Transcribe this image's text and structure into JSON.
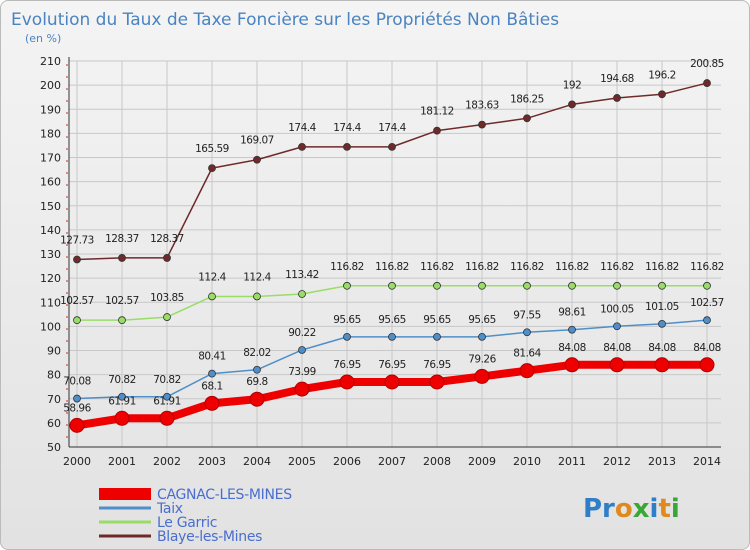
{
  "chart_data": {
    "type": "line",
    "title": "Evolution du Taux de Taxe Foncière sur les Propriétés Non Bâties",
    "unit_label": "(en %)",
    "xlabel": "",
    "ylabel": "",
    "ylim": [
      50,
      210
    ],
    "y_ticks": [
      50,
      60,
      70,
      80,
      90,
      100,
      110,
      120,
      130,
      140,
      150,
      160,
      170,
      180,
      190,
      200,
      210
    ],
    "categories": [
      "2000",
      "2001",
      "2002",
      "2003",
      "2004",
      "2005",
      "2006",
      "2007",
      "2008",
      "2009",
      "2010",
      "2011",
      "2012",
      "2013",
      "2014"
    ],
    "series": [
      {
        "name": "CAGNAC-LES-MINES",
        "color": "#ee0000",
        "values": [
          58.96,
          61.91,
          61.91,
          68.1,
          69.8,
          73.99,
          76.95,
          76.95,
          76.95,
          79.26,
          81.64,
          84.08,
          84.08,
          84.08,
          84.08
        ],
        "labels": [
          "58.96",
          "61.91",
          "61.91",
          "68.1",
          "69.8",
          "73.99",
          "76.95",
          "76.95",
          "76.95",
          "79.26",
          "81.64",
          "84.08",
          "84.08",
          "84.08",
          "84.08"
        ]
      },
      {
        "name": "Taix",
        "color": "#4f8fc9",
        "values": [
          70.08,
          70.82,
          70.82,
          80.41,
          82.02,
          90.22,
          95.65,
          95.65,
          95.65,
          95.65,
          97.55,
          98.61,
          100.05,
          101.05,
          102.57
        ],
        "labels": [
          "70.08",
          "70.82",
          "70.82",
          "80.41",
          "82.02",
          "90.22",
          "95.65",
          "95.65",
          "95.65",
          "95.65",
          "97.55",
          "98.61",
          "100.05",
          "101.05",
          "102.57"
        ]
      },
      {
        "name": "Le Garric",
        "color": "#99dd66",
        "values": [
          102.57,
          102.57,
          103.85,
          112.4,
          112.4,
          113.42,
          116.82,
          116.82,
          116.82,
          116.82,
          116.82,
          116.82,
          116.82,
          116.82,
          116.82
        ],
        "labels": [
          "102.57",
          "102.57",
          "103.85",
          "112.4",
          "112.4",
          "113.42",
          "116.82",
          "116.82",
          "116.82",
          "116.82",
          "116.82",
          "116.82",
          "116.82",
          "116.82",
          "116.82"
        ]
      },
      {
        "name": "Blaye-les-Mines",
        "color": "#6e2a2a",
        "values": [
          127.73,
          128.37,
          128.37,
          165.59,
          169.07,
          174.4,
          174.4,
          174.4,
          181.12,
          183.63,
          186.25,
          192,
          194.68,
          196.2,
          200.85
        ],
        "labels": [
          "127.73",
          "128.37",
          "128.37",
          "165.59",
          "169.07",
          "174.4",
          "174.4",
          "174.4",
          "181.12",
          "183.63",
          "186.25",
          "192",
          "194.68",
          "196.2",
          "200.85"
        ]
      }
    ],
    "grid": true,
    "legend_position": "bottom-left"
  },
  "logo": {
    "text_p": "Pr",
    "text_o": "o",
    "text_x": "x",
    "text_i": "i",
    "text_t": "t",
    "text_i2": "i"
  }
}
